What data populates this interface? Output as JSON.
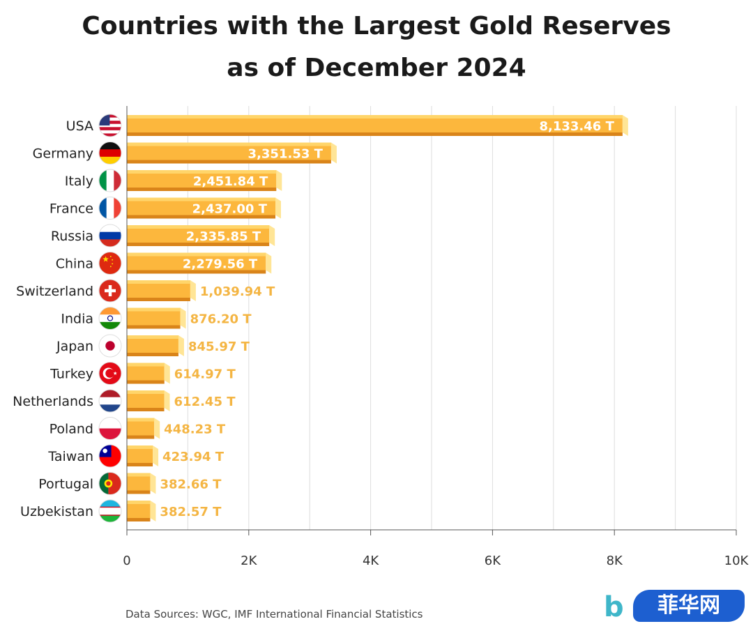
{
  "title_line1": "Countries with the Largest Gold Reserves",
  "title_line2": "as of December 2024",
  "source": "Data Sources: WGC, IMF International Financial Statistics",
  "logo_text": "菲华网",
  "logo_letter": "b",
  "colors": {
    "bar_face": "#fcb73d",
    "bar_top": "#ffd56a",
    "bar_bottom": "#d9841a",
    "bar_end": "#ffe596",
    "label_out": "#f4b543",
    "label_in": "#ffffff",
    "grid": "#dddddd",
    "axis": "#555555"
  },
  "chart_data": {
    "type": "bar",
    "orientation": "horizontal",
    "categories": [
      "USA",
      "Germany",
      "Italy",
      "France",
      "Russia",
      "China",
      "Switzerland",
      "India",
      "Japan",
      "Turkey",
      "Netherlands",
      "Poland",
      "Taiwan",
      "Portugal",
      "Uzbekistan"
    ],
    "flag_icons": [
      "flag-usa-icon",
      "flag-germany-icon",
      "flag-italy-icon",
      "flag-france-icon",
      "flag-russia-icon",
      "flag-china-icon",
      "flag-switzerland-icon",
      "flag-india-icon",
      "flag-japan-icon",
      "flag-turkey-icon",
      "flag-netherlands-icon",
      "flag-poland-icon",
      "flag-taiwan-icon",
      "flag-portugal-icon",
      "flag-uzbekistan-icon"
    ],
    "values": [
      8133.46,
      3351.53,
      2451.84,
      2437.0,
      2335.85,
      2279.56,
      1039.94,
      876.2,
      845.97,
      614.97,
      612.45,
      448.23,
      423.94,
      382.66,
      382.57
    ],
    "value_labels": [
      "8,133.46 T",
      "3,351.53 T",
      "2,451.84 T",
      "2,437.00 T",
      "2,335.85 T",
      "2,279.56 T",
      "1,039.94 T",
      "876.20 T",
      "845.97 T",
      "614.97 T",
      "612.45 T",
      "448.23 T",
      "423.94 T",
      "382.66 T",
      "382.57 T"
    ],
    "labels_inside_count": 6,
    "xlim": [
      0,
      10000
    ],
    "xticks": [
      0,
      2000,
      4000,
      6000,
      8000,
      10000
    ],
    "xtick_labels": [
      "0",
      "2K",
      "4K",
      "6K",
      "8K",
      "10K"
    ],
    "minor_gridlines": [
      1000,
      3000,
      5000,
      7000,
      9000
    ],
    "grid": true,
    "legend": "none"
  }
}
